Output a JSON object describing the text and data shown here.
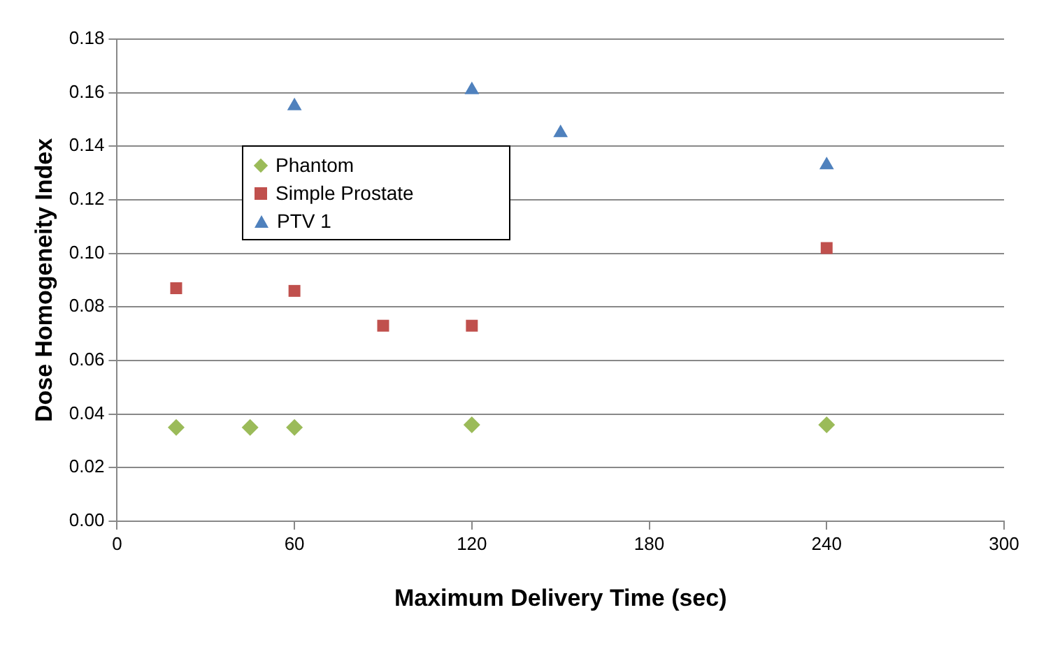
{
  "chart_data": {
    "type": "scatter",
    "xlabel": "Maximum Delivery Time (sec)",
    "ylabel": "Dose Homogeneity Index",
    "xlim": [
      0,
      300
    ],
    "xticks": [
      0,
      60,
      120,
      180,
      240,
      300
    ],
    "ylim": [
      0,
      0.18
    ],
    "yticks": [
      {
        "value": 0,
        "label": "0.00"
      },
      {
        "value": 0.02,
        "label": "0.02"
      },
      {
        "value": 0.04,
        "label": "0.04"
      },
      {
        "value": 0.06,
        "label": "0.06"
      },
      {
        "value": 0.08,
        "label": "0.08"
      },
      {
        "value": 0.1,
        "label": "0.10"
      },
      {
        "value": 0.12,
        "label": "0.12"
      },
      {
        "value": 0.14,
        "label": "0.14"
      },
      {
        "value": 0.16,
        "label": "0.16"
      },
      {
        "value": 0.18,
        "label": "0.18"
      }
    ],
    "grid": "y",
    "legend": "top left",
    "series": [
      {
        "name": "Phantom",
        "color": "#9bbb59",
        "marker": "diamond",
        "x": [
          20,
          45,
          60,
          120,
          240
        ],
        "values": [
          0.035,
          0.035,
          0.035,
          0.036,
          0.036
        ]
      },
      {
        "name": "Simple Prostate",
        "color": "#c0504d",
        "marker": "square",
        "x": [
          20,
          60,
          90,
          120,
          240
        ],
        "values": [
          0.087,
          0.086,
          0.073,
          0.073,
          0.102
        ]
      },
      {
        "name": "PTV 1",
        "color": "#4f81bd",
        "marker": "triangle",
        "x": [
          60,
          120,
          150,
          240
        ],
        "values": [
          0.155,
          0.161,
          0.145,
          0.133
        ]
      }
    ]
  }
}
